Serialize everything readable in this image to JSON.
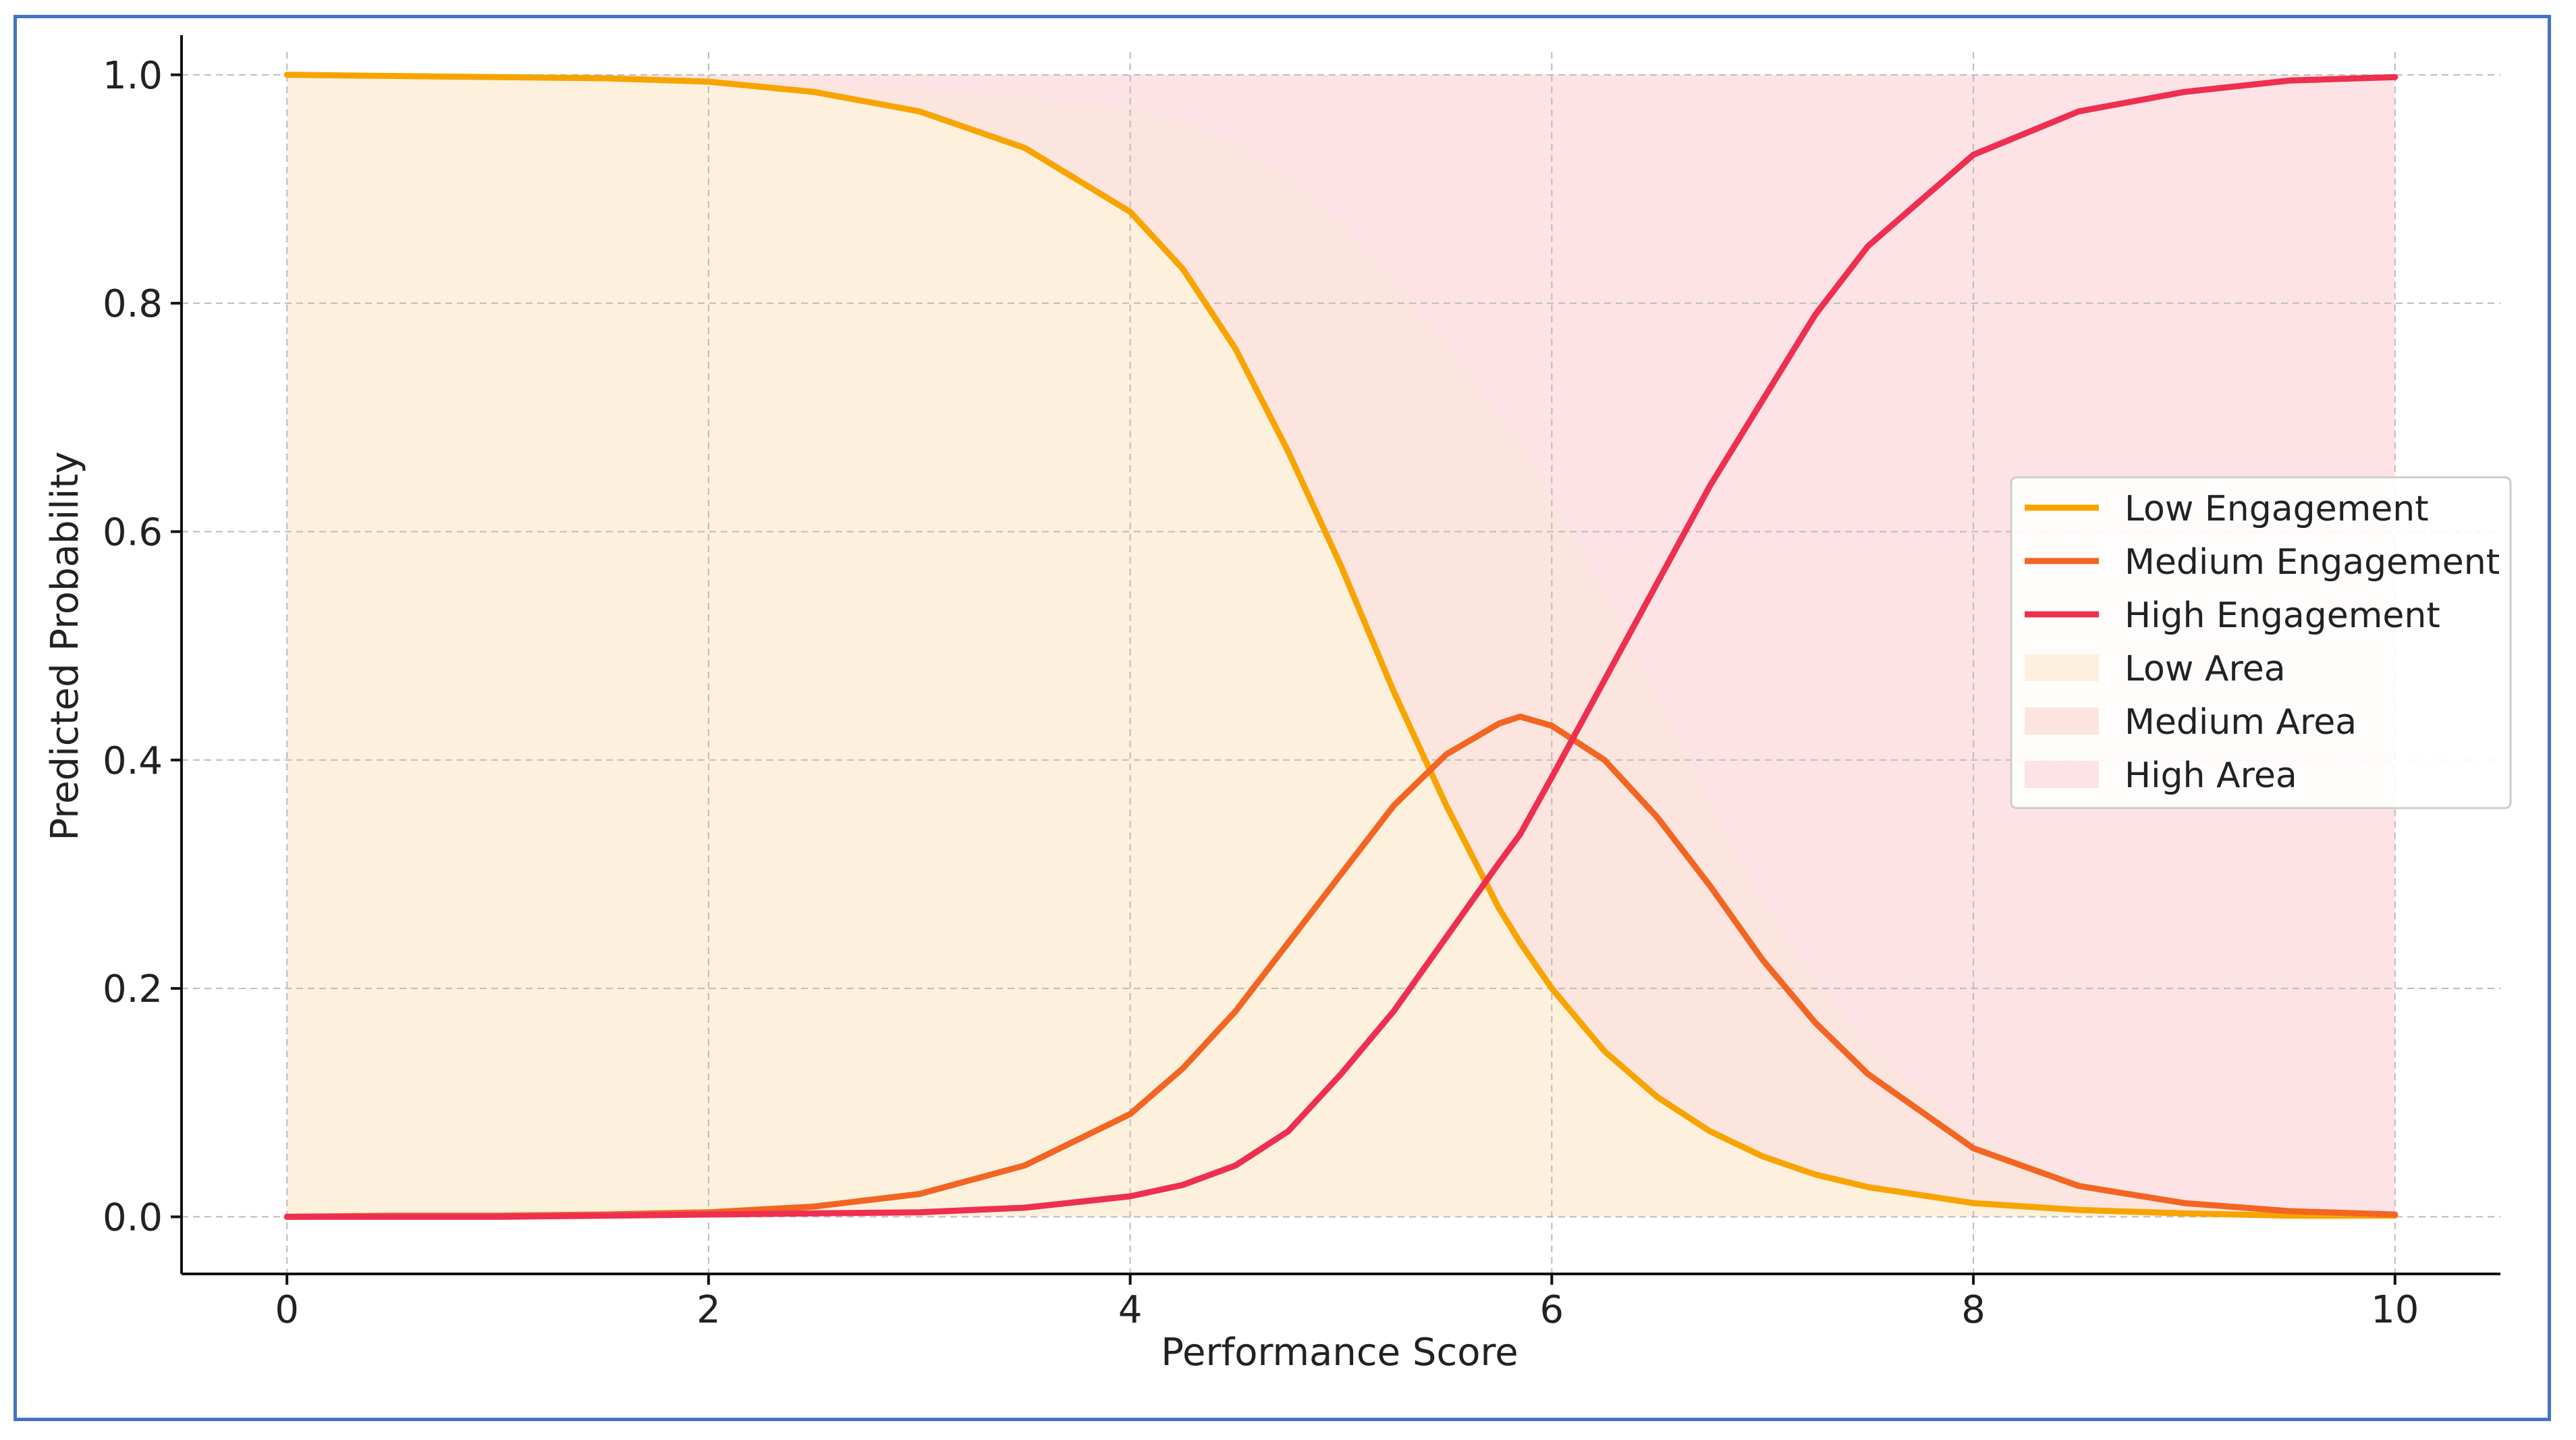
{
  "chart_data": {
    "type": "line",
    "title": "",
    "xlabel": "Performance Score",
    "ylabel": "Predicted Probability",
    "xlim": [
      -0.5,
      10.5
    ],
    "ylim": [
      -0.05,
      1.02
    ],
    "x_ticks": [
      "0",
      "2",
      "4",
      "6",
      "8",
      "10"
    ],
    "y_ticks": [
      "0.0",
      "0.2",
      "0.4",
      "0.6",
      "0.8",
      "1.0"
    ],
    "grid": true,
    "legend_position": "center-right",
    "x": [
      0,
      0.5,
      1,
      1.5,
      2,
      2.5,
      3,
      3.5,
      4,
      4.25,
      4.5,
      4.75,
      5,
      5.25,
      5.5,
      5.75,
      5.85,
      6,
      6.25,
      6.5,
      6.75,
      7,
      7.25,
      7.5,
      8,
      8.5,
      9,
      9.5,
      10
    ],
    "series": [
      {
        "name": "Low Engagement",
        "color": "#f7a400",
        "values": [
          1.0,
          0.999,
          0.998,
          0.997,
          0.994,
          0.985,
          0.968,
          0.936,
          0.88,
          0.83,
          0.76,
          0.67,
          0.57,
          0.46,
          0.36,
          0.27,
          0.24,
          0.2,
          0.145,
          0.105,
          0.075,
          0.053,
          0.037,
          0.026,
          0.012,
          0.006,
          0.003,
          0.001,
          0.001
        ]
      },
      {
        "name": "Medium Engagement",
        "color": "#f26522",
        "values": [
          0.0,
          0.001,
          0.001,
          0.002,
          0.004,
          0.009,
          0.02,
          0.045,
          0.09,
          0.13,
          0.18,
          0.24,
          0.3,
          0.36,
          0.405,
          0.432,
          0.438,
          0.43,
          0.4,
          0.35,
          0.29,
          0.225,
          0.17,
          0.125,
          0.06,
          0.027,
          0.012,
          0.005,
          0.002
        ]
      },
      {
        "name": "High Engagement",
        "color": "#ee2f4f",
        "values": [
          0.0,
          0.0,
          0.0,
          0.001,
          0.002,
          0.003,
          0.004,
          0.008,
          0.018,
          0.028,
          0.045,
          0.075,
          0.125,
          0.18,
          0.245,
          0.31,
          0.335,
          0.385,
          0.47,
          0.555,
          0.64,
          0.715,
          0.79,
          0.85,
          0.93,
          0.968,
          0.985,
          0.995,
          0.998
        ]
      }
    ],
    "areas": [
      {
        "name": "Low Area",
        "color": "#fdf1dd"
      },
      {
        "name": "Medium Area",
        "color": "#fce5de"
      },
      {
        "name": "High Area",
        "color": "#fde3e6"
      }
    ]
  }
}
